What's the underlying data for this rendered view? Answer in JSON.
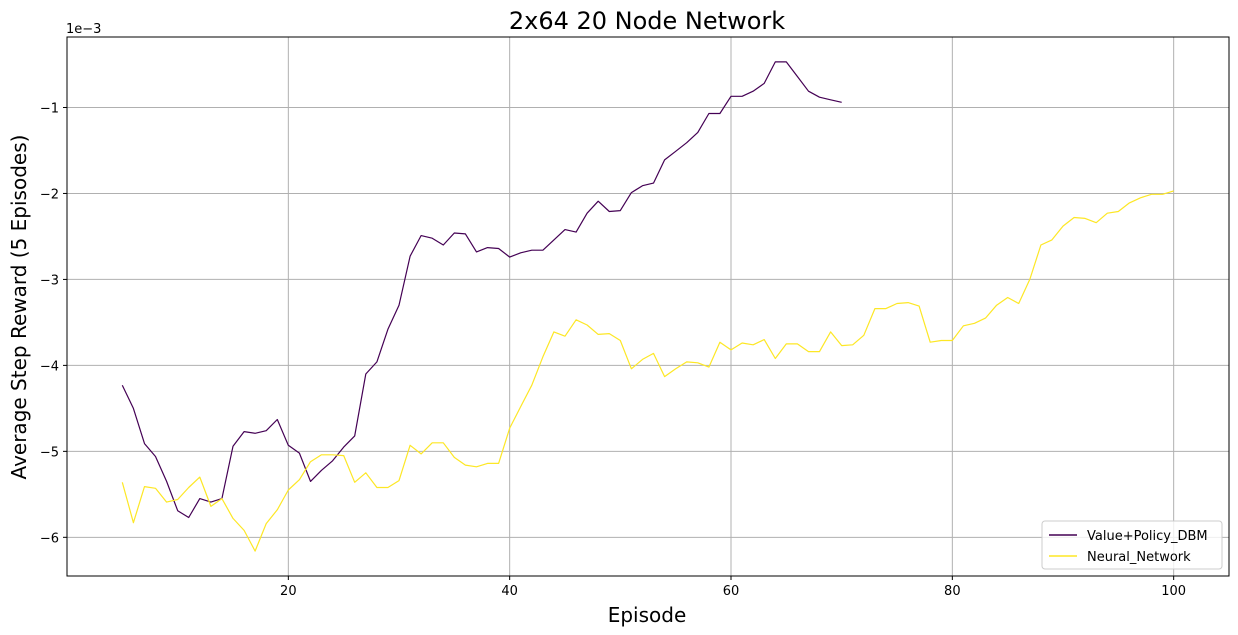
{
  "chart_data": {
    "type": "line",
    "title": "2x64 20 Node Network",
    "xlabel": "Episode",
    "ylabel": "Average Step Reward (5 Episodes)",
    "offset_label": "1e−3",
    "xlim": [
      0,
      105
    ],
    "ylim": [
      -6.45,
      -0.18
    ],
    "xticks": [
      20,
      40,
      60,
      80,
      100
    ],
    "xtick_labels": [
      "20",
      "40",
      "60",
      "80",
      "100"
    ],
    "yticks": [
      -6,
      -5,
      -4,
      -3,
      -2,
      -1
    ],
    "ytick_labels": [
      "−6",
      "−5",
      "−4",
      "−3",
      "−2",
      "−1"
    ],
    "grid": true,
    "legend_position": "lower-right",
    "series": [
      {
        "name": "Value+Policy_DBM",
        "color": "#440154",
        "x": [
          5,
          6,
          7,
          8,
          9,
          10,
          11,
          12,
          13,
          14,
          15,
          16,
          17,
          18,
          19,
          20,
          21,
          22,
          23,
          24,
          25,
          26,
          27,
          28,
          29,
          30,
          31,
          32,
          33,
          34,
          35,
          36,
          37,
          38,
          39,
          40,
          41,
          42,
          43,
          44,
          45,
          46,
          47,
          48,
          49,
          50,
          51,
          52,
          53,
          54,
          55,
          56,
          57,
          58,
          59,
          60,
          61,
          62,
          63,
          64,
          65,
          66,
          67,
          68,
          69,
          70
        ],
        "y": [
          -4.23,
          -4.5,
          -4.91,
          -5.06,
          -5.35,
          -5.69,
          -5.77,
          -5.55,
          -5.59,
          -5.55,
          -4.94,
          -4.77,
          -4.79,
          -4.76,
          -4.63,
          -4.93,
          -5.02,
          -5.35,
          -5.22,
          -5.11,
          -4.95,
          -4.82,
          -4.1,
          -3.96,
          -3.58,
          -3.3,
          -2.73,
          -2.49,
          -2.52,
          -2.6,
          -2.46,
          -2.47,
          -2.68,
          -2.63,
          -2.64,
          -2.74,
          -2.69,
          -2.66,
          -2.66,
          -2.54,
          -2.42,
          -2.45,
          -2.23,
          -2.09,
          -2.21,
          -2.2,
          -1.99,
          -1.91,
          -1.88,
          -1.61,
          -1.51,
          -1.41,
          -1.29,
          -1.07,
          -1.07,
          -0.87,
          -0.87,
          -0.81,
          -0.72,
          -0.47,
          -0.47,
          -0.64,
          -0.81,
          -0.88,
          -0.91,
          -0.94
        ]
      },
      {
        "name": "Neural_Network",
        "color": "#fde725",
        "x": [
          5,
          6,
          7,
          8,
          9,
          10,
          11,
          12,
          13,
          14,
          15,
          16,
          17,
          18,
          19,
          20,
          21,
          22,
          23,
          24,
          25,
          26,
          27,
          28,
          29,
          30,
          31,
          32,
          33,
          34,
          35,
          36,
          37,
          38,
          39,
          40,
          41,
          42,
          43,
          44,
          45,
          46,
          47,
          48,
          49,
          50,
          51,
          52,
          53,
          54,
          55,
          56,
          57,
          58,
          59,
          60,
          61,
          62,
          63,
          64,
          65,
          66,
          67,
          68,
          69,
          70,
          71,
          72,
          73,
          74,
          75,
          76,
          77,
          78,
          79,
          80,
          81,
          82,
          83,
          84,
          85,
          86,
          87,
          88,
          89,
          90,
          91,
          92,
          93,
          94,
          95,
          96,
          97,
          98,
          99,
          100
        ],
        "y": [
          -5.36,
          -5.83,
          -5.41,
          -5.43,
          -5.59,
          -5.56,
          -5.42,
          -5.3,
          -5.64,
          -5.55,
          -5.78,
          -5.92,
          -6.16,
          -5.84,
          -5.68,
          -5.45,
          -5.33,
          -5.12,
          -5.04,
          -5.04,
          -5.05,
          -5.36,
          -5.25,
          -5.42,
          -5.42,
          -5.34,
          -4.93,
          -5.03,
          -4.9,
          -4.9,
          -5.07,
          -5.16,
          -5.18,
          -5.14,
          -5.14,
          -4.73,
          -4.48,
          -4.23,
          -3.9,
          -3.61,
          -3.66,
          -3.47,
          -3.53,
          -3.64,
          -3.63,
          -3.71,
          -4.04,
          -3.93,
          -3.86,
          -4.13,
          -4.04,
          -3.96,
          -3.97,
          -4.02,
          -3.73,
          -3.82,
          -3.74,
          -3.76,
          -3.7,
          -3.92,
          -3.75,
          -3.75,
          -3.84,
          -3.84,
          -3.61,
          -3.77,
          -3.76,
          -3.65,
          -3.34,
          -3.34,
          -3.28,
          -3.27,
          -3.31,
          -3.73,
          -3.71,
          -3.71,
          -3.54,
          -3.51,
          -3.45,
          -3.3,
          -3.21,
          -3.28,
          -3.0,
          -2.6,
          -2.54,
          -2.38,
          -2.28,
          -2.29,
          -2.34,
          -2.23,
          -2.21,
          -2.11,
          -2.05,
          -2.01,
          -2.01,
          -1.97
        ]
      }
    ]
  }
}
